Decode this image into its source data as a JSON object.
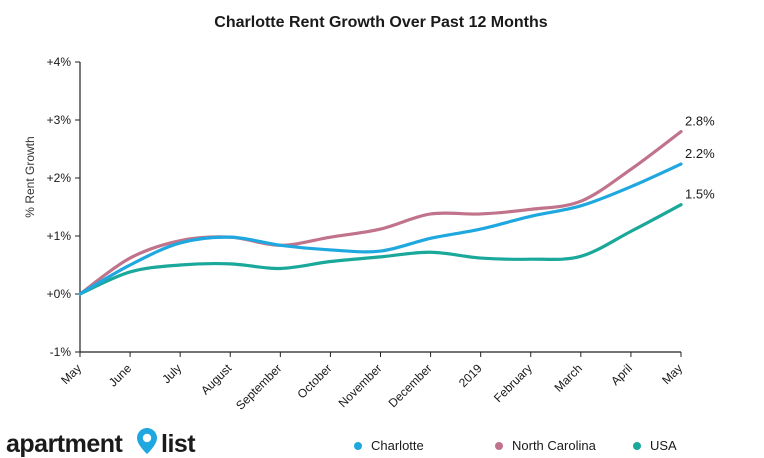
{
  "chart_data": {
    "type": "line",
    "title": "Charlotte Rent Growth Over Past 12 Months",
    "xlabel": "",
    "ylabel": "% Rent Growth",
    "categories": [
      "May",
      "June",
      "July",
      "August",
      "September",
      "October",
      "November",
      "December",
      "2019",
      "February",
      "March",
      "April",
      "May"
    ],
    "y_ticks": [
      "-1%",
      "+0%",
      "+1%",
      "+2%",
      "+3%",
      "+4%"
    ],
    "ylim": [
      -1,
      4
    ],
    "grid": false,
    "legend_position": "bottom-right",
    "series": [
      {
        "name": "Charlotte",
        "color": "#1fa8e0",
        "values": [
          0.0,
          0.5,
          0.88,
          0.98,
          0.84,
          0.76,
          0.74,
          0.96,
          1.12,
          1.34,
          1.52,
          1.85,
          2.24
        ],
        "end_label": "2.2%"
      },
      {
        "name": "North Carolina",
        "color": "#c0738a",
        "values": [
          0.0,
          0.62,
          0.92,
          0.98,
          0.84,
          0.98,
          1.12,
          1.38,
          1.38,
          1.46,
          1.6,
          2.15,
          2.8
        ],
        "end_label": "2.8%"
      },
      {
        "name": "USA",
        "color": "#1aa89a",
        "values": [
          0.0,
          0.38,
          0.5,
          0.52,
          0.44,
          0.56,
          0.64,
          0.72,
          0.62,
          0.6,
          0.65,
          1.08,
          1.54
        ],
        "end_label": "1.5%"
      }
    ]
  },
  "logo": {
    "text_before": "apartment",
    "text_after": "list",
    "pin_color": "#1fa8e0"
  }
}
